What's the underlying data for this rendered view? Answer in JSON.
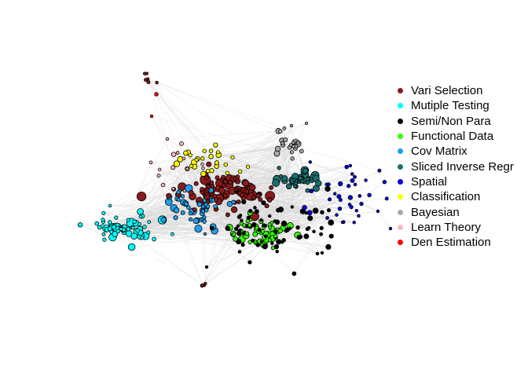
{
  "legend": {
    "items": [
      {
        "label": "Vari Selection",
        "color": "#8B1A1A"
      },
      {
        "label": "Mutiple Testing",
        "color": "#00FFFF"
      },
      {
        "label": "Semi/Non Para",
        "color": "#000000"
      },
      {
        "label": "Functional Data",
        "color": "#33FF00"
      },
      {
        "label": "Cov Matrix",
        "color": "#1EA0F0"
      },
      {
        "label": "Sliced Inverse Regr",
        "color": "#1A7070"
      },
      {
        "label": "Spatial",
        "color": "#0000E0"
      },
      {
        "label": "Classification",
        "color": "#FFFF00"
      },
      {
        "label": "Bayesian",
        "color": "#AAAAAA"
      },
      {
        "label": "Learn Theory",
        "color": "#FFB6C1"
      },
      {
        "label": "Den Estimation",
        "color": "#FF0000"
      }
    ]
  }
}
